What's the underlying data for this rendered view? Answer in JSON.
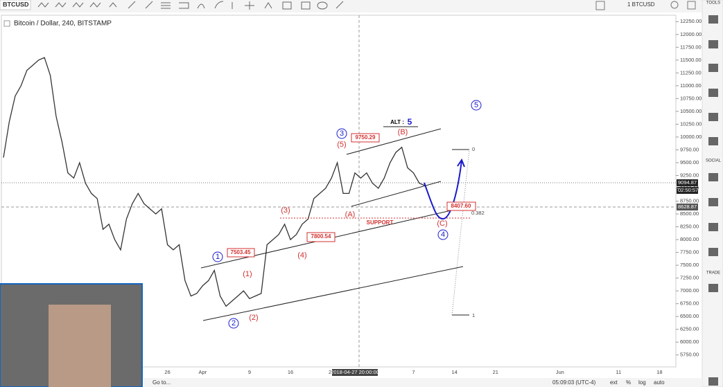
{
  "toolbar": {
    "symbol": "BTCUSD",
    "compare": "1 BTCUSD"
  },
  "sidebar": {
    "tools": "TOOLS",
    "social": "SOCIAL",
    "trade": "TRADE"
  },
  "footer": {
    "goto": "Go to...",
    "clock": "05:09:03 (UTC-4)",
    "ext": "ext",
    "percent": "%",
    "log": "log",
    "auto": "auto"
  },
  "price_tags": {
    "last": "9094.87",
    "countdown": "02:50:57",
    "crosshair": "8628.87"
  },
  "annotations": {
    "alt": "ALT :",
    "alt_wave": "5",
    "wave_B": "(B)",
    "wave_3": "3",
    "wave_5_minor": "(5)",
    "price_9750": "9750.29",
    "wave_A": "(A)",
    "support": "SUPPORT",
    "wave_C": "(C)",
    "wave_4": "4",
    "wave_3_minor": "(3)",
    "price_7800": "7800.54",
    "wave_4_minor": "(4)",
    "wave_1": "1",
    "price_7503": "7503.45",
    "wave_1_minor": "(1)",
    "wave_2": "2",
    "wave_2_minor": "(2)",
    "wave_5": "5",
    "fib_0": "0",
    "fib_0382": "0.382",
    "fib_1": "1",
    "price_8407": "8407.60"
  },
  "chart_data": {
    "type": "line",
    "title": "Bitcoin / Dollar, 240, BITSTAMP",
    "categories": [
      null,
      null,
      null,
      null,
      null,
      null,
      null,
      null,
      null,
      null,
      null,
      null,
      null,
      null,
      null,
      null,
      null,
      null,
      null,
      null,
      null,
      null,
      null,
      null,
      null,
      null,
      null,
      null,
      "26",
      null,
      null,
      null,
      null,
      null,
      "Apr",
      null,
      null,
      null,
      null,
      null,
      null,
      null,
      "9",
      null,
      null,
      null,
      null,
      null,
      null,
      "16",
      null,
      null,
      null,
      null,
      null,
      null,
      "23",
      null,
      null,
      null,
      "2018-04-27 20:00:00",
      null,
      null,
      null,
      null,
      null,
      null,
      null,
      null,
      null,
      "7",
      null,
      null,
      null,
      null,
      null,
      null,
      "14",
      null,
      null,
      null,
      null,
      null,
      null,
      "21",
      null,
      null,
      null,
      null,
      null,
      null,
      null,
      null,
      null,
      null,
      "Jun",
      null,
      null,
      null,
      null,
      null,
      null,
      null,
      null,
      null,
      "11",
      null,
      null,
      null,
      null,
      null,
      null,
      "18",
      null
    ],
    "series": [
      {
        "name": "BTCUSD",
        "color": "#333333",
        "values": [
          9600,
          10300,
          10800,
          11000,
          11300,
          11400,
          11500,
          11550,
          11200,
          10400,
          9900,
          9300,
          9200,
          9500,
          9100,
          8900,
          8800,
          8200,
          8300,
          8000,
          7800,
          8400,
          8700,
          8900,
          8700,
          8600,
          8500,
          8600,
          7900,
          7800,
          7900,
          7200,
          6900,
          6950,
          7100,
          7200,
          7400,
          6900,
          6700,
          6800,
          6900,
          7000,
          6850,
          6900,
          6950,
          7900,
          8000,
          8100,
          8300,
          8000,
          8100,
          8300,
          8400,
          8800,
          8900,
          9000,
          9200,
          9500,
          8900,
          8900,
          9300,
          9200,
          9300,
          9100,
          9000,
          9200,
          9500,
          9700,
          9800,
          9400,
          9300,
          9100,
          9050,
          null,
          null,
          null,
          null,
          null,
          null,
          null,
          null,
          null,
          null,
          null,
          null,
          null,
          null,
          null,
          null,
          null,
          null,
          null,
          null,
          null,
          null,
          null,
          null,
          null,
          null,
          null,
          null,
          null,
          null,
          null,
          null,
          null,
          null,
          null,
          null,
          null,
          null,
          null,
          null,
          null
        ]
      }
    ],
    "ylim": [
      5625,
      12375
    ],
    "yticks": [
      {
        "value": 5750,
        "label": "5750.00"
      },
      {
        "value": 6000,
        "label": "6000.00"
      },
      {
        "value": 6250,
        "label": "6250.00"
      },
      {
        "value": 6500,
        "label": "6500.00"
      },
      {
        "value": 6750,
        "label": "6750.00"
      },
      {
        "value": 7000,
        "label": "7000.00"
      },
      {
        "value": 7250,
        "label": "7250.00"
      },
      {
        "value": 7500,
        "label": "7500.00"
      },
      {
        "value": 7750,
        "label": "7750.00"
      },
      {
        "value": 8000,
        "label": "8000.00"
      },
      {
        "value": 8250,
        "label": "8250.00"
      },
      {
        "value": 8500,
        "label": "8500.00"
      },
      {
        "value": 8750,
        "label": "8750.00"
      },
      {
        "value": 9000,
        "label": "9000.00"
      },
      {
        "value": 9250,
        "label": "9250.00"
      },
      {
        "value": 9500,
        "label": "9500.00"
      },
      {
        "value": 9750,
        "label": "9750.00"
      },
      {
        "value": 10000,
        "label": "10000.00"
      },
      {
        "value": 10250,
        "label": "10250.00"
      },
      {
        "value": 10500,
        "label": "10500.00"
      },
      {
        "value": 10750,
        "label": "10750.00"
      },
      {
        "value": 11000,
        "label": "11000.00"
      },
      {
        "value": 11250,
        "label": "11250.00"
      },
      {
        "value": 11500,
        "label": "11500.00"
      },
      {
        "value": 11750,
        "label": "11750.00"
      },
      {
        "value": 12000,
        "label": "12000.00"
      },
      {
        "value": 12250,
        "label": "12250.00"
      }
    ],
    "grid": false
  }
}
